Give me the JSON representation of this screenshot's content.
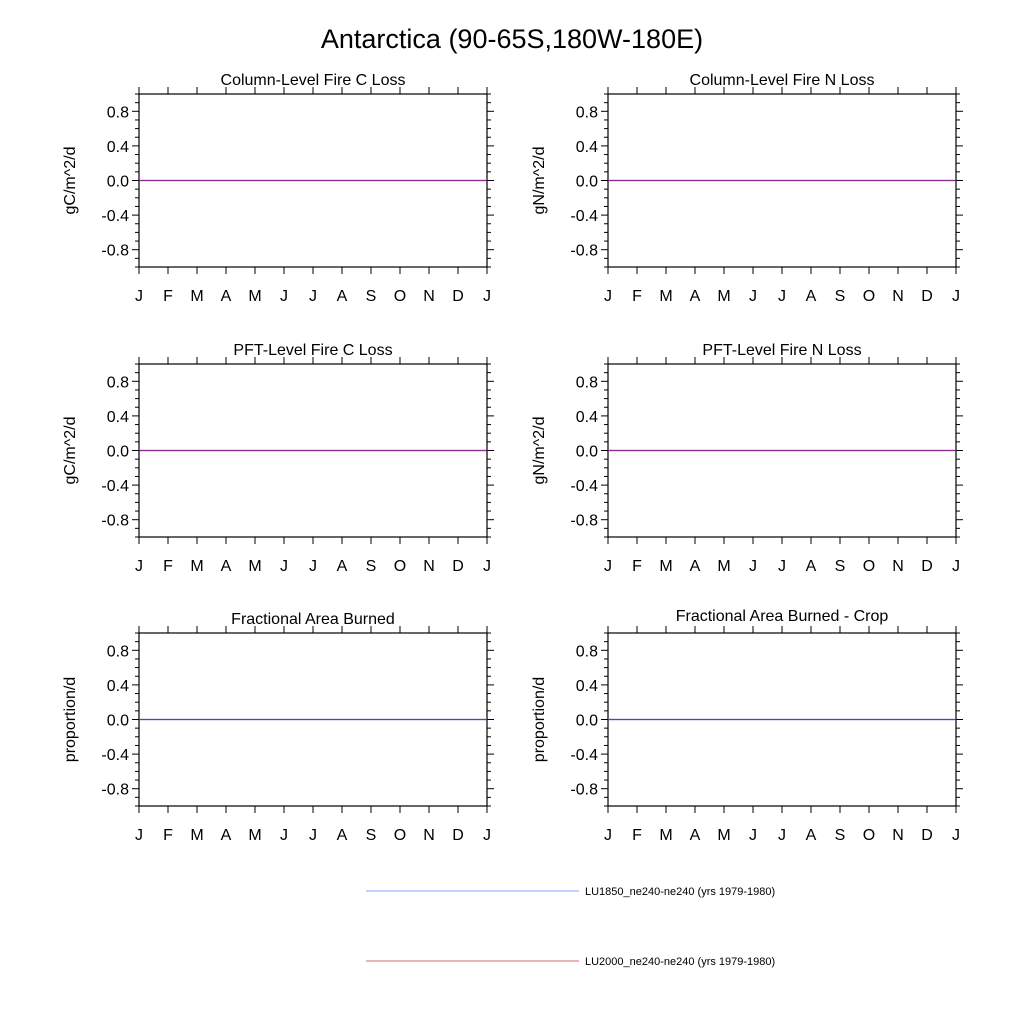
{
  "figure": {
    "title": "Antarctica (90-65S,180W-180E)"
  },
  "colors": {
    "LU1850": "#2b3cff",
    "LU2000": "#e02020",
    "axes": "#000000",
    "legend_LU1850": "#8aa0ff",
    "legend_LU2000": "#d96a6a"
  },
  "legend": [
    {
      "label": "LU1850_ne240-ne240 (yrs 1979-1980)",
      "color_key": "legend_LU1850"
    },
    {
      "label": "LU2000_ne240-ne240 (yrs 1979-1980)",
      "color_key": "legend_LU2000"
    }
  ],
  "chart_data": [
    {
      "type": "line",
      "title": "Column-Level Fire C Loss",
      "ylabel": "gC/m^2/d",
      "x_tick_labels": [
        "J",
        "F",
        "M",
        "A",
        "M",
        "J",
        "J",
        "A",
        "S",
        "O",
        "N",
        "D",
        "J"
      ],
      "y_tick_labels": [
        "0.8",
        "0.4",
        "0.0",
        "-0.4",
        "-0.8"
      ],
      "ylim": [
        -1.0,
        1.0
      ],
      "grid": false,
      "series": [
        {
          "name": "LU1850_ne240-ne240 (yrs 1979-1980)",
          "color_key": "LU1850",
          "values": [
            0,
            0,
            0,
            0,
            0,
            0,
            0,
            0,
            0,
            0,
            0,
            0,
            0
          ]
        },
        {
          "name": "LU2000_ne240-ne240 (yrs 1979-1980)",
          "color_key": "LU2000",
          "values": [
            0,
            0,
            0,
            0,
            0,
            0,
            0,
            0,
            0,
            0,
            0,
            0,
            0
          ]
        }
      ]
    },
    {
      "type": "line",
      "title": "Column-Level Fire N Loss",
      "ylabel": "gN/m^2/d",
      "x_tick_labels": [
        "J",
        "F",
        "M",
        "A",
        "M",
        "J",
        "J",
        "A",
        "S",
        "O",
        "N",
        "D",
        "J"
      ],
      "y_tick_labels": [
        "0.8",
        "0.4",
        "0.0",
        "-0.4",
        "-0.8"
      ],
      "ylim": [
        -1.0,
        1.0
      ],
      "grid": false,
      "series": [
        {
          "name": "LU1850_ne240-ne240 (yrs 1979-1980)",
          "color_key": "LU1850",
          "values": [
            0,
            0,
            0,
            0,
            0,
            0,
            0,
            0,
            0,
            0,
            0,
            0,
            0
          ]
        },
        {
          "name": "LU2000_ne240-ne240 (yrs 1979-1980)",
          "color_key": "LU2000",
          "values": [
            0,
            0,
            0,
            0,
            0,
            0,
            0,
            0,
            0,
            0,
            0,
            0,
            0
          ]
        }
      ]
    },
    {
      "type": "line",
      "title": "PFT-Level Fire C Loss",
      "ylabel": "gC/m^2/d",
      "x_tick_labels": [
        "J",
        "F",
        "M",
        "A",
        "M",
        "J",
        "J",
        "A",
        "S",
        "O",
        "N",
        "D",
        "J"
      ],
      "y_tick_labels": [
        "0.8",
        "0.4",
        "0.0",
        "-0.4",
        "-0.8"
      ],
      "ylim": [
        -1.0,
        1.0
      ],
      "grid": false,
      "series": [
        {
          "name": "LU1850_ne240-ne240 (yrs 1979-1980)",
          "color_key": "LU1850",
          "values": [
            0,
            0,
            0,
            0,
            0,
            0,
            0,
            0,
            0,
            0,
            0,
            0,
            0
          ]
        },
        {
          "name": "LU2000_ne240-ne240 (yrs 1979-1980)",
          "color_key": "LU2000",
          "values": [
            0,
            0,
            0,
            0,
            0,
            0,
            0,
            0,
            0,
            0,
            0,
            0,
            0
          ]
        }
      ]
    },
    {
      "type": "line",
      "title": "PFT-Level Fire N Loss",
      "ylabel": "gN/m^2/d",
      "x_tick_labels": [
        "J",
        "F",
        "M",
        "A",
        "M",
        "J",
        "J",
        "A",
        "S",
        "O",
        "N",
        "D",
        "J"
      ],
      "y_tick_labels": [
        "0.8",
        "0.4",
        "0.0",
        "-0.4",
        "-0.8"
      ],
      "ylim": [
        -1.0,
        1.0
      ],
      "grid": false,
      "series": [
        {
          "name": "LU1850_ne240-ne240 (yrs 1979-1980)",
          "color_key": "LU1850",
          "values": [
            0,
            0,
            0,
            0,
            0,
            0,
            0,
            0,
            0,
            0,
            0,
            0,
            0
          ]
        },
        {
          "name": "LU2000_ne240-ne240 (yrs 1979-1980)",
          "color_key": "LU2000",
          "values": [
            0,
            0,
            0,
            0,
            0,
            0,
            0,
            0,
            0,
            0,
            0,
            0,
            0
          ]
        }
      ]
    },
    {
      "type": "line",
      "title": "Fractional Area Burned",
      "ylabel": "proportion/d",
      "x_tick_labels": [
        "J",
        "F",
        "M",
        "A",
        "M",
        "J",
        "J",
        "A",
        "S",
        "O",
        "N",
        "D",
        "J"
      ],
      "y_tick_labels": [
        "0.8",
        "0.4",
        "0.0",
        "-0.4",
        "-0.8"
      ],
      "ylim": [
        -1.0,
        1.0
      ],
      "grid": false,
      "series": [
        {
          "name": "LU1850_ne240-ne240 (yrs 1979-1980)",
          "color_key": "LU1850",
          "values": [
            0,
            0,
            0,
            0,
            0,
            0,
            0,
            0,
            0,
            0,
            0,
            0,
            0
          ]
        },
        {
          "name": "LU2000_ne240-ne240 (yrs 1979-1980)",
          "color_key": "LU2000",
          "values": [
            0,
            0,
            0,
            0,
            0,
            0,
            0,
            0,
            0,
            0,
            0,
            0,
            0
          ]
        }
      ]
    },
    {
      "type": "line",
      "title": "Fractional Area Burned - Crop",
      "ylabel": "proportion/d",
      "x_tick_labels": [
        "J",
        "F",
        "M",
        "A",
        "M",
        "J",
        "J",
        "A",
        "S",
        "O",
        "N",
        "D",
        "J"
      ],
      "y_tick_labels": [
        "0.8",
        "0.4",
        "0.0",
        "-0.4",
        "-0.8"
      ],
      "ylim": [
        -1.0,
        1.0
      ],
      "grid": false,
      "series": [
        {
          "name": "LU1850_ne240-ne240 (yrs 1979-1980)",
          "color_key": "LU1850",
          "values": [
            0,
            0,
            0,
            0,
            0,
            0,
            0,
            0,
            0,
            0,
            0,
            0,
            0
          ]
        },
        {
          "name": "LU2000_ne240-ne240 (yrs 1979-1980)",
          "color_key": "LU2000",
          "values": [
            0,
            0,
            0,
            0,
            0,
            0,
            0,
            0,
            0,
            0,
            0,
            0,
            0
          ]
        }
      ]
    }
  ]
}
